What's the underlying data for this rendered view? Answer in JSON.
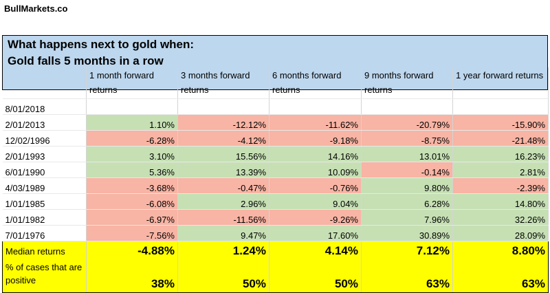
{
  "brand": "BullMarkets.co",
  "header": {
    "line1": "What happens next to gold when:",
    "line2": "Gold falls 5 months in a row"
  },
  "columns": [
    "",
    "1 month forward returns",
    "3 months forward returns",
    "6 months forward returns",
    "9 months forward returns",
    "1 year forward returns"
  ],
  "rows": [
    {
      "date": "8/01/2018",
      "values": [
        "",
        "",
        "",
        "",
        ""
      ]
    },
    {
      "date": "2/01/2013",
      "values": [
        "1.10%",
        "-12.12%",
        "-11.62%",
        "-20.79%",
        "-15.90%"
      ]
    },
    {
      "date": "12/02/1996",
      "values": [
        "-6.28%",
        "-4.12%",
        "-9.18%",
        "-8.75%",
        "-21.48%"
      ]
    },
    {
      "date": "2/01/1993",
      "values": [
        "3.10%",
        "15.56%",
        "14.16%",
        "13.01%",
        "16.23%"
      ]
    },
    {
      "date": "6/01/1990",
      "values": [
        "5.36%",
        "13.39%",
        "10.09%",
        "-0.14%",
        "2.81%"
      ]
    },
    {
      "date": "4/03/1989",
      "values": [
        "-3.68%",
        "-0.47%",
        "-0.76%",
        "9.80%",
        "-2.39%"
      ]
    },
    {
      "date": "1/01/1985",
      "values": [
        "-6.08%",
        "2.96%",
        "9.04%",
        "6.28%",
        "14.80%"
      ]
    },
    {
      "date": "1/01/1982",
      "values": [
        "-6.97%",
        "-11.56%",
        "-9.26%",
        "7.96%",
        "32.26%"
      ]
    },
    {
      "date": "7/01/1976",
      "values": [
        "-7.56%",
        "9.47%",
        "17.60%",
        "30.89%",
        "28.09%"
      ]
    }
  ],
  "summary": {
    "median_label": "Median returns",
    "median": [
      "-4.88%",
      "1.24%",
      "4.14%",
      "7.12%",
      "8.80%"
    ],
    "positive_label": "% of cases that are positive",
    "positive": [
      "38%",
      "50%",
      "50%",
      "63%",
      "63%"
    ]
  },
  "colors": {
    "positive_fill": "#c6e0b4",
    "negative_fill": "#f8b4a4",
    "summary_fill": "#ffff00",
    "header_fill": "#bdd7ee"
  }
}
